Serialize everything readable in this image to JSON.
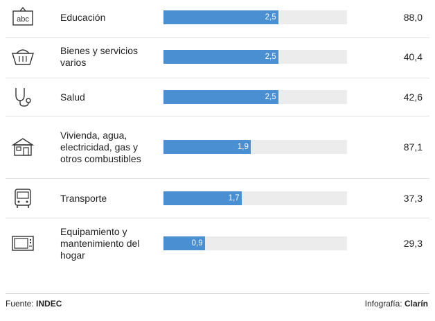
{
  "chart_data": {
    "type": "bar",
    "categories": [
      "Educación",
      "Bienes y servicios varios",
      "Salud",
      "Vivienda, agua, electricidad, gas y otros combustibles",
      "Transporte",
      "Equipamiento y mantenimiento del hogar"
    ],
    "values": [
      2.5,
      2.5,
      2.5,
      1.9,
      1.7,
      0.9
    ],
    "value_labels": [
      "2,5",
      "2,5",
      "2,5",
      "1,9",
      "1,7",
      "0,9"
    ],
    "right_values": [
      "88,0",
      "40,4",
      "42,6",
      "87,1",
      "37,3",
      "29,3"
    ],
    "icons": [
      "abc-board-icon",
      "basket-icon",
      "stethoscope-icon",
      "house-icon",
      "bus-icon",
      "microwave-icon"
    ],
    "xlim": [
      0,
      4.0
    ],
    "bar_color": "#4a8fd1",
    "track_color": "#ececec"
  },
  "footer": {
    "source_prefix": "Fuente: ",
    "source": "INDEC",
    "credit_prefix": "Infografía: ",
    "credit": "Clarín"
  }
}
